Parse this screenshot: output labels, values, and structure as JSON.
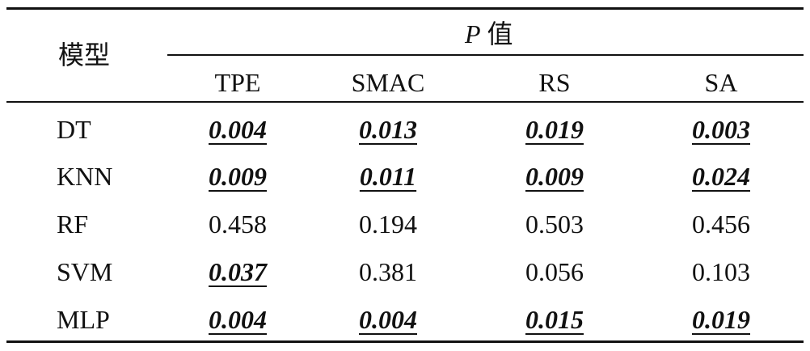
{
  "table": {
    "row_header": "模型",
    "group_header_symbol": "P",
    "group_header_suffix": "值",
    "columns": [
      "TPE",
      "SMAC",
      "RS",
      "SA"
    ],
    "rows": [
      {
        "model": "DT",
        "values": [
          "0.004",
          "0.013",
          "0.019",
          "0.003"
        ],
        "significant": [
          true,
          true,
          true,
          true
        ]
      },
      {
        "model": "KNN",
        "values": [
          "0.009",
          "0.011",
          "0.009",
          "0.024"
        ],
        "significant": [
          true,
          true,
          true,
          true
        ]
      },
      {
        "model": "RF",
        "values": [
          "0.458",
          "0.194",
          "0.503",
          "0.456"
        ],
        "significant": [
          false,
          false,
          false,
          false
        ]
      },
      {
        "model": "SVM",
        "values": [
          "0.037",
          "0.381",
          "0.056",
          "0.103"
        ],
        "significant": [
          true,
          false,
          false,
          false
        ]
      },
      {
        "model": "MLP",
        "values": [
          "0.004",
          "0.004",
          "0.015",
          "0.019"
        ],
        "significant": [
          true,
          true,
          true,
          true
        ]
      }
    ]
  }
}
